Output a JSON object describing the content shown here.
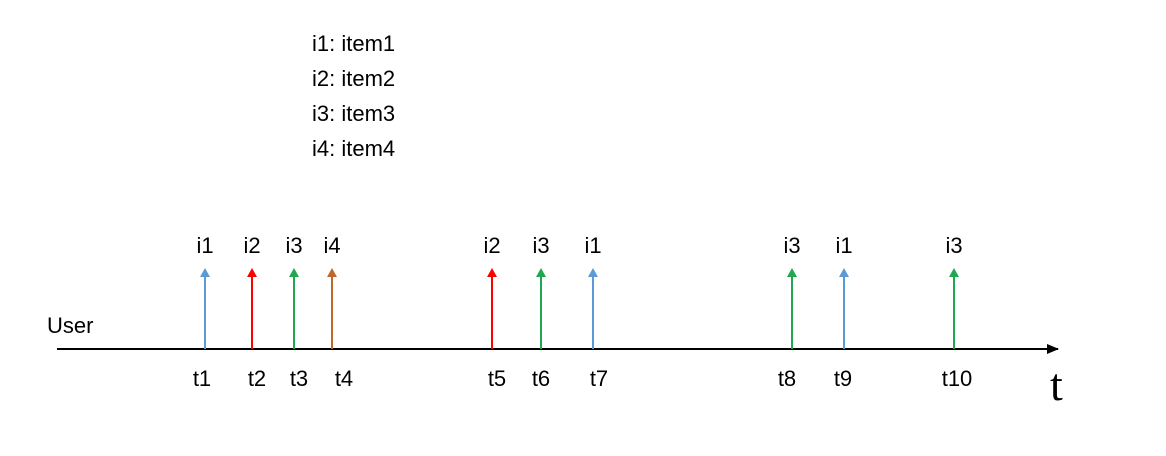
{
  "legend": [
    "i1: item1",
    "i2: item2",
    "i3: item3",
    "i4: item4"
  ],
  "row_label": "User",
  "axis_label": "t",
  "colors": {
    "i1": "#5b9bd5",
    "i2": "#ff0000",
    "i3": "#1fa84f",
    "i4": "#c0682a",
    "axis": "#000000"
  },
  "events": [
    {
      "item": "i1",
      "time": "t1"
    },
    {
      "item": "i2",
      "time": "t2"
    },
    {
      "item": "i3",
      "time": "t3"
    },
    {
      "item": "i4",
      "time": "t4"
    },
    {
      "item": "i2",
      "time": "t5"
    },
    {
      "item": "i3",
      "time": "t6"
    },
    {
      "item": "i1",
      "time": "t7"
    },
    {
      "item": "i3",
      "time": "t8"
    },
    {
      "item": "i1",
      "time": "t9"
    },
    {
      "item": "i3",
      "time": "t10"
    }
  ]
}
